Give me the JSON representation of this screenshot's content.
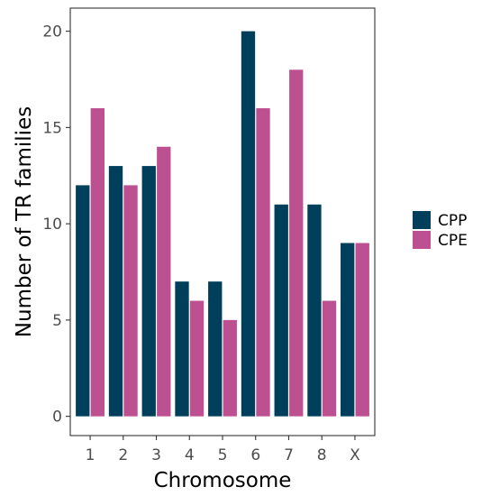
{
  "chart_data": {
    "type": "bar",
    "xlabel": "Chromosome",
    "ylabel": "Number of TR families",
    "categories": [
      "1",
      "2",
      "3",
      "4",
      "5",
      "6",
      "7",
      "8",
      "X"
    ],
    "series": [
      {
        "name": "CPP",
        "color": "#003f5c",
        "values": [
          12,
          13,
          13,
          7,
          7,
          20,
          11,
          11,
          9
        ]
      },
      {
        "name": "CPE",
        "color": "#bc5090",
        "values": [
          16,
          12,
          14,
          6,
          5,
          16,
          18,
          6,
          9
        ]
      }
    ],
    "ylim": [
      -1,
      21.2
    ],
    "yticks": [
      0,
      5,
      10,
      15,
      20
    ],
    "yticklabels": [
      "0",
      "5",
      "10",
      "15",
      "20"
    ],
    "grid": false,
    "legend_position": "right"
  }
}
